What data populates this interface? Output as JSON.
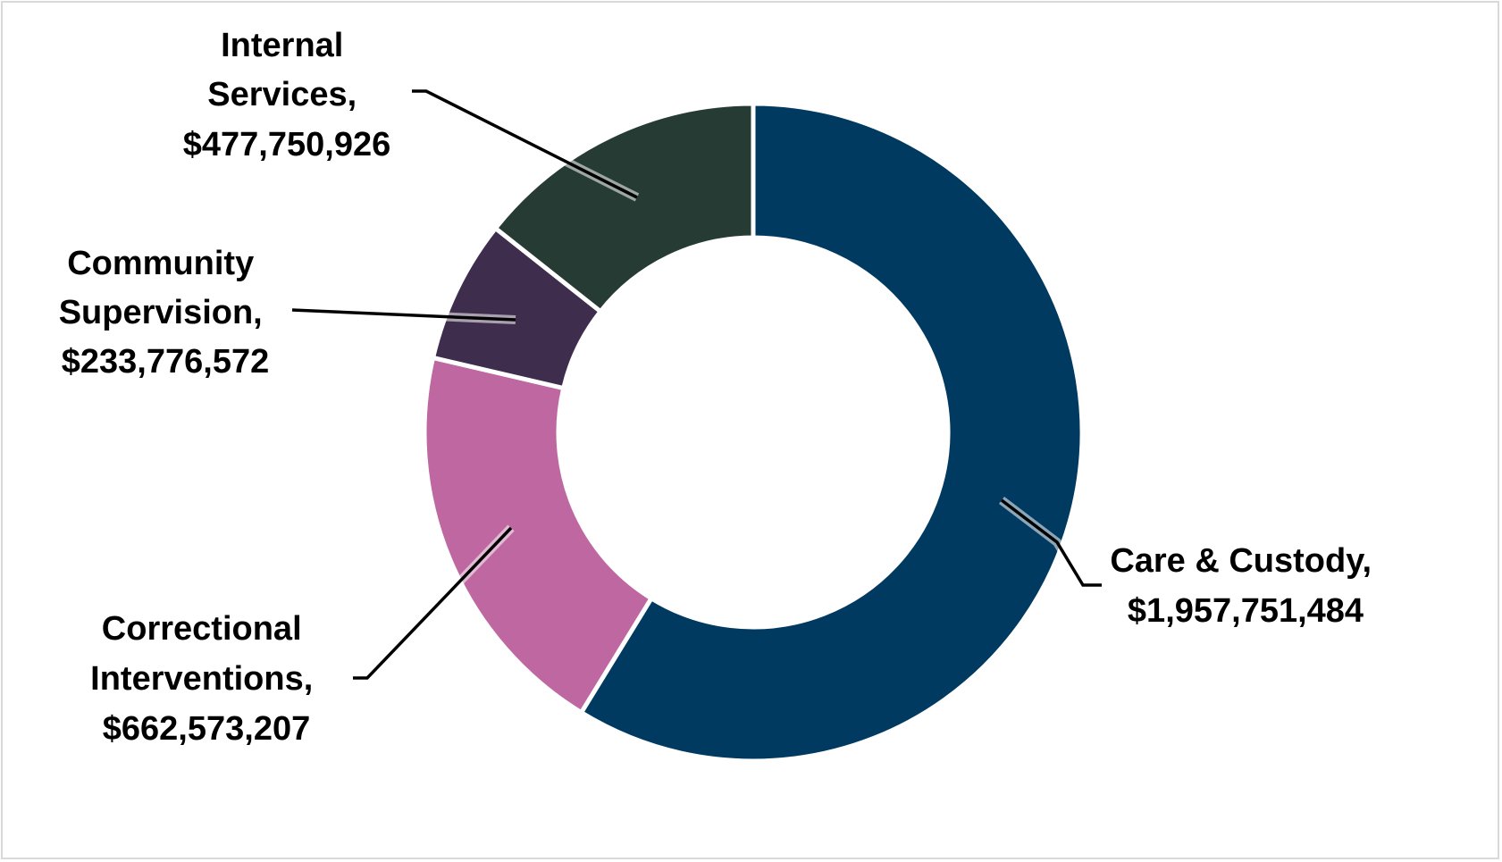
{
  "chart_data": {
    "type": "pie",
    "variant": "donut",
    "title": "",
    "slices": [
      {
        "label": "Care & Custody",
        "value": 1957751484,
        "display": "Care & Custody,",
        "value_text": "$1,957,751,484",
        "color": "#003a61"
      },
      {
        "label": "Correctional Interventions",
        "value": 662573207,
        "display_lines": [
          "Correctional",
          "Interventions,"
        ],
        "value_text": "$662,573,207",
        "color": "#bf67a0"
      },
      {
        "label": "Community Supervision",
        "value": 233776572,
        "display_lines": [
          "Community",
          "Supervision,"
        ],
        "value_text": "$233,776,572",
        "color": "#3e2d4d"
      },
      {
        "label": "Internal Services",
        "value": 477750926,
        "display_lines": [
          "Internal",
          "Services,"
        ],
        "value_text": "$477,750,926",
        "color": "#253b33"
      }
    ],
    "legend": "none",
    "data_labels": "outside with leader lines"
  }
}
